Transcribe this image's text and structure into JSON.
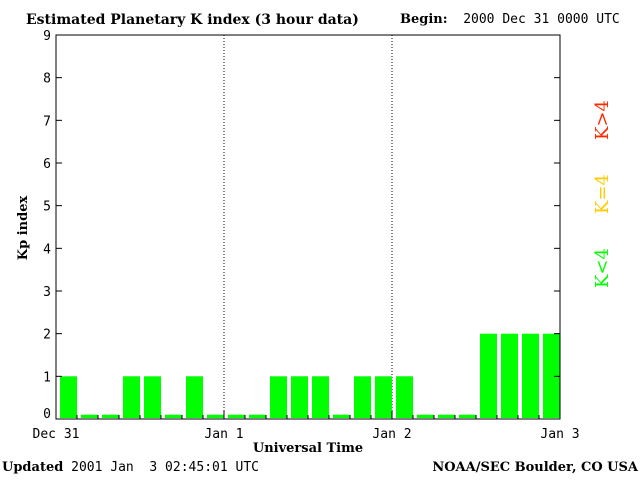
{
  "chart_data": {
    "type": "bar",
    "title": "Estimated Planetary K index (3 hour data)",
    "begin_label": "Begin:",
    "begin_value": "2000 Dec 31 0000 UTC",
    "ylabel": "Kp index",
    "xlabel": "Universal Time",
    "ylim": [
      0,
      9
    ],
    "yticks": [
      0,
      1,
      2,
      3,
      4,
      5,
      6,
      7,
      8,
      9
    ],
    "xlim_days": [
      0,
      3
    ],
    "x_tick_labels": [
      "Dec 31",
      "Jan 1",
      "Jan 2",
      "Jan 3"
    ],
    "day_separators": [
      1,
      2
    ],
    "interval_hours": 3,
    "values": [
      1,
      0,
      0,
      1,
      1,
      0,
      1,
      0,
      0,
      0,
      1,
      1,
      1,
      0,
      1,
      1,
      1,
      0,
      0,
      0,
      2,
      2,
      2,
      2
    ],
    "bar_colors": {
      "low": "#00ff00",
      "equal": "#ffcc00",
      "high": "#ff2a00"
    },
    "legend": [
      {
        "text": "K<4",
        "color": "#00ff00"
      },
      {
        "text": "K=4",
        "color": "#ffcc00"
      },
      {
        "text": "K>4",
        "color": "#ff2a00"
      }
    ]
  },
  "footer": {
    "updated_label": "Updated",
    "updated_value": "2001 Jan  3 02:45:01 UTC",
    "source": "NOAA/SEC Boulder, CO USA"
  }
}
